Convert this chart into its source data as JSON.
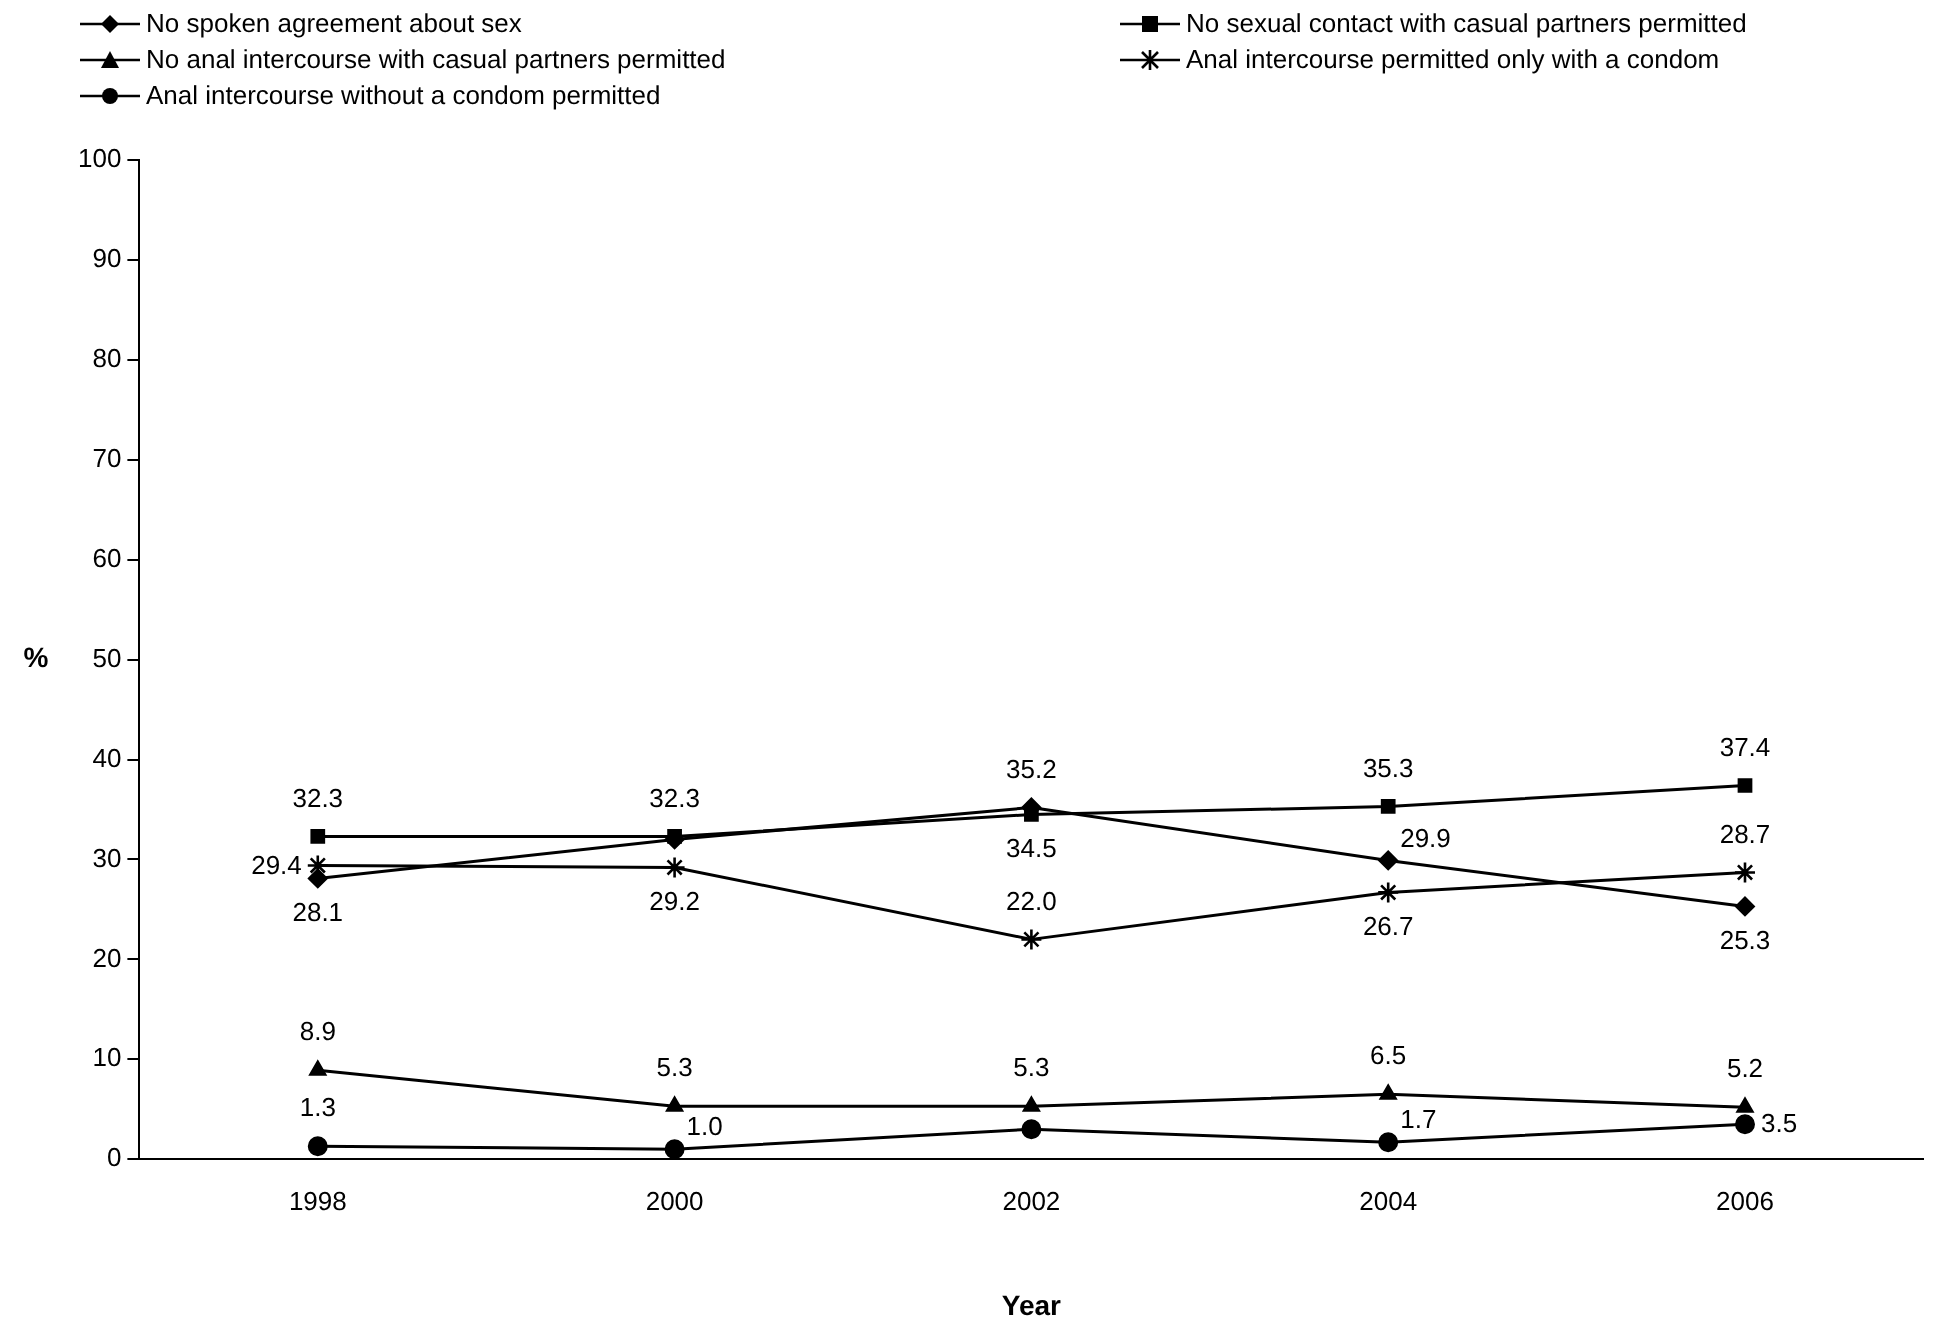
{
  "chart_data": {
    "type": "line",
    "xlabel": "Year",
    "ylabel": "%",
    "categories": [
      "1998",
      "2000",
      "2002",
      "2004",
      "2006"
    ],
    "ylim": [
      0,
      100
    ],
    "yticks": [
      0,
      10,
      20,
      30,
      40,
      50,
      60,
      70,
      80,
      90,
      100
    ],
    "grid": false,
    "legend": "top",
    "line_style": "solid",
    "series": [
      {
        "name": "No spoken agreement about sex",
        "color": "#000000",
        "marker": "diamond",
        "values": [
          28.1,
          32.0,
          35.2,
          29.9,
          25.3
        ],
        "value_labels": [
          "28.1",
          null,
          "35.2",
          "29.9",
          "25.3"
        ]
      },
      {
        "name": "No sexual contact with casual partners permitted",
        "color": "#000000",
        "marker": "square",
        "values": [
          32.3,
          32.3,
          34.5,
          35.3,
          37.4
        ],
        "value_labels": [
          "32.3",
          "32.3",
          "34.5",
          "35.3",
          "37.4"
        ]
      },
      {
        "name": "No anal intercourse with casual partners permitted",
        "color": "#000000",
        "marker": "triangle",
        "values": [
          8.9,
          5.3,
          5.3,
          6.5,
          5.2
        ],
        "value_labels": [
          "8.9",
          "5.3",
          "5.3",
          "6.5",
          "5.2"
        ]
      },
      {
        "name": "Anal intercourse permitted only with a condom",
        "color": "#000000",
        "marker": "cross",
        "values": [
          29.4,
          29.2,
          22.0,
          26.7,
          28.7
        ],
        "value_labels": [
          "29.4",
          "29.2",
          "22.0",
          "26.7",
          "28.7"
        ]
      },
      {
        "name": "Anal intercourse without a condom permitted",
        "color": "#000000",
        "marker": "circle",
        "values": [
          1.3,
          1.0,
          3.0,
          1.7,
          3.5
        ],
        "value_labels": [
          "1.3",
          "1.0",
          null,
          "1.7",
          "3.5"
        ]
      }
    ]
  }
}
